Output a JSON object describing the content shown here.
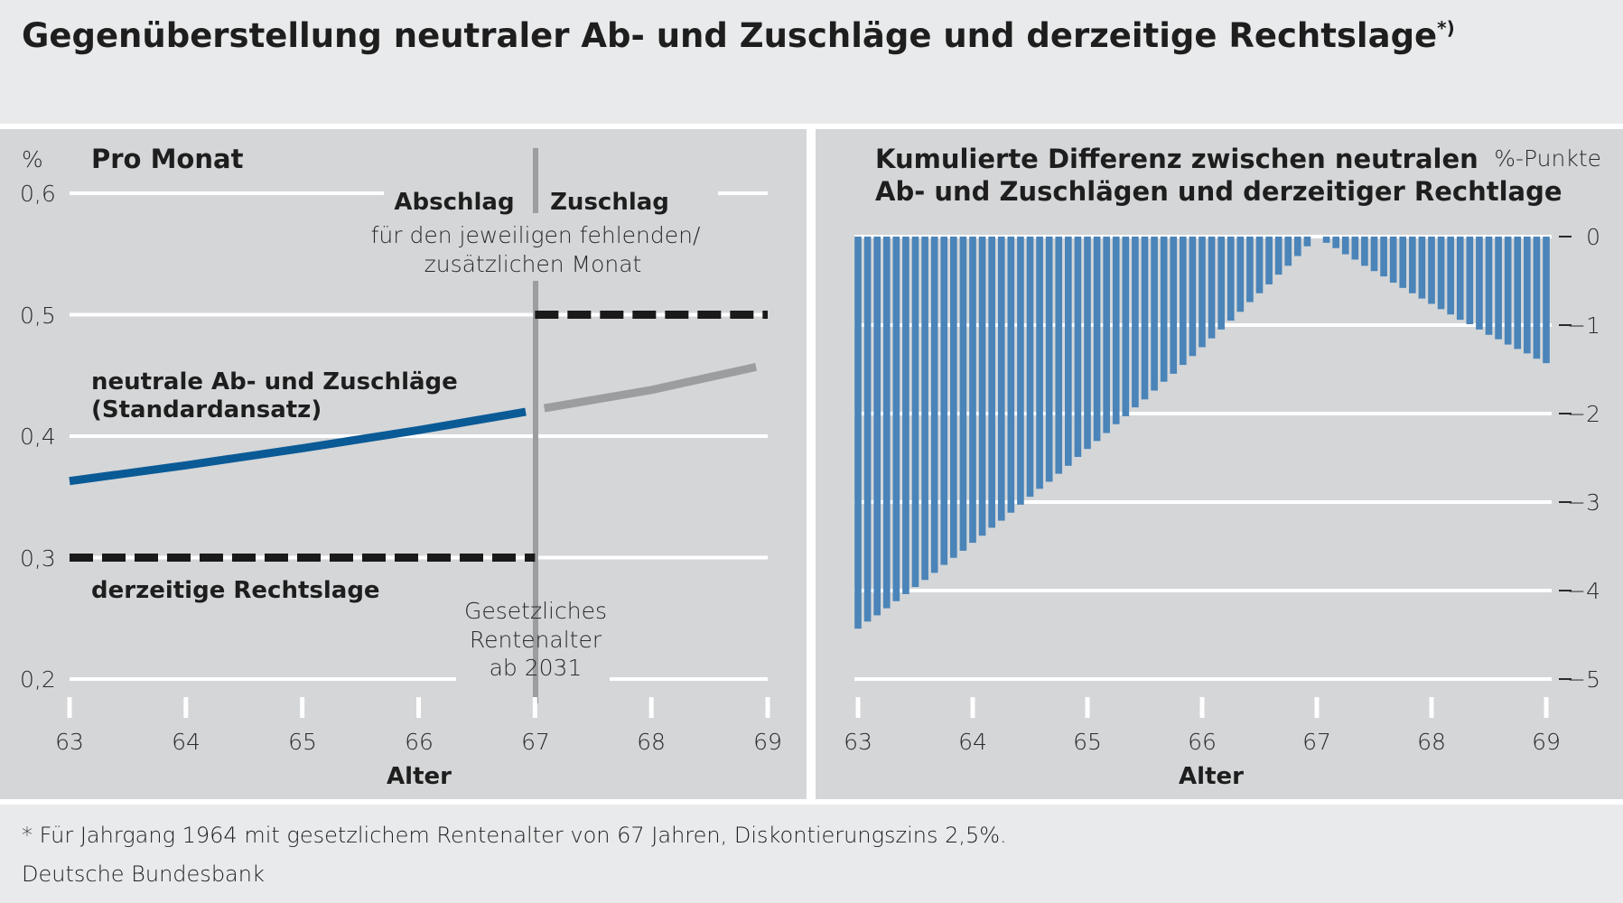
{
  "title": "Gegenüberstellung neutraler Ab- und Zuschläge und derzeitige Rechtslage",
  "title_footnote_mark": "*)",
  "footnote": "* Für Jahrgang 1964 mit gesetzlichem Rentenalter von 67 Jahren, Diskontierungszins 2,5%.",
  "source": "Deutsche Bundesbank",
  "colors": {
    "neutral_line": "#0a5a96",
    "neutral_line_after": "#9c9d9f",
    "legal_dashed": "#1a1a1a",
    "bars": "#4a84b8",
    "panel_bg": "#d4d6d8",
    "header_bg": "#e9eaeb",
    "retirement_marker": "#9c9d9f"
  },
  "chart_data": [
    {
      "type": "line",
      "title": "Pro Monat",
      "ylabel": "%",
      "xlabel": "Alter",
      "xlim": [
        63,
        69
      ],
      "ylim": [
        0.2,
        0.6
      ],
      "xticks": [
        "63",
        "64",
        "65",
        "66",
        "67",
        "68",
        "69"
      ],
      "yticks": [
        "0,2",
        "0,3",
        "0,4",
        "0,5",
        "0,6"
      ],
      "grid": true,
      "series": [
        {
          "name": "neutrale Ab- und Zuschläge (Standardansatz)",
          "name_line1": "neutrale Ab- und Zuschläge",
          "name_line2": "(Standardansatz)",
          "segment": "Abschlag",
          "x": [
            63,
            64,
            65,
            66,
            66.92
          ],
          "y": [
            0.363,
            0.376,
            0.39,
            0.405,
            0.42
          ]
        },
        {
          "name": "neutrale Ab- und Zuschläge (Standardansatz)",
          "segment": "Zuschlag",
          "x": [
            67.08,
            68,
            68.9
          ],
          "y": [
            0.423,
            0.438,
            0.457
          ]
        },
        {
          "name": "derzeitige Rechtslage",
          "style": "dashed",
          "segment": "Abschlag",
          "x": [
            63,
            67
          ],
          "y": [
            0.3,
            0.3
          ]
        },
        {
          "name": "derzeitige Rechtslage",
          "style": "dashed",
          "segment": "Zuschlag",
          "x": [
            67,
            69
          ],
          "y": [
            0.5,
            0.5
          ]
        }
      ],
      "annotations": {
        "abschlag": "Abschlag",
        "zuschlag": "Zuschlag",
        "per_month_line1": "für den jeweiligen fehlenden/",
        "per_month_line2": "zusätzlichen Monat",
        "retirement_line1": "Gesetzliches",
        "retirement_line2": "Rentenalter",
        "retirement_line3": "ab 2031",
        "retirement_age": 67
      }
    },
    {
      "type": "bar",
      "title_line1": "Kumulierte Differenz zwischen neutralen",
      "title_line2": "Ab- und Zuschlägen und derzeitiger Rechtlage",
      "ylabel": "%-Punkte",
      "xlabel": "Alter",
      "xlim": [
        63,
        69
      ],
      "ylim": [
        -5,
        0
      ],
      "x_frequency": "monthly",
      "xticks": [
        "63",
        "64",
        "65",
        "66",
        "67",
        "68",
        "69"
      ],
      "yticks": [
        "0",
        "−1",
        "−2",
        "−3",
        "−4",
        "−5"
      ],
      "grid": true,
      "values": [
        -4.43,
        -4.35,
        -4.28,
        -4.2,
        -4.12,
        -4.04,
        -3.96,
        -3.88,
        -3.8,
        -3.71,
        -3.63,
        -3.55,
        -3.46,
        -3.38,
        -3.29,
        -3.21,
        -3.12,
        -3.03,
        -2.94,
        -2.85,
        -2.77,
        -2.68,
        -2.59,
        -2.49,
        -2.4,
        -2.31,
        -2.22,
        -2.12,
        -2.03,
        -1.93,
        -1.84,
        -1.74,
        -1.64,
        -1.55,
        -1.45,
        -1.35,
        -1.25,
        -1.15,
        -1.05,
        -0.95,
        -0.85,
        -0.74,
        -0.64,
        -0.54,
        -0.43,
        -0.33,
        -0.22,
        -0.11,
        0,
        -0.07,
        -0.13,
        -0.2,
        -0.26,
        -0.33,
        -0.39,
        -0.45,
        -0.52,
        -0.58,
        -0.64,
        -0.7,
        -0.76,
        -0.82,
        -0.88,
        -0.94,
        -0.99,
        -1.05,
        -1.11,
        -1.16,
        -1.22,
        -1.27,
        -1.32,
        -1.38,
        -1.43
      ]
    }
  ]
}
